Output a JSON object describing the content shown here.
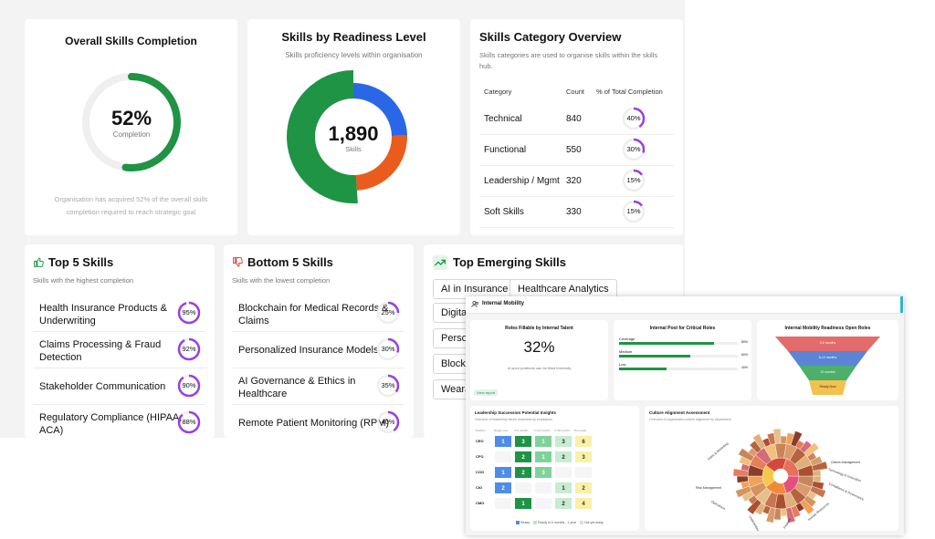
{
  "overall": {
    "title": "Overall Skills Completion",
    "percent": "52%",
    "percent_value": 52,
    "label": "Completion",
    "note_line1": "Organisation has acquired 52% of the overall skills",
    "note_line2": "completion required to reach strategic goal",
    "color": "#1e9444"
  },
  "readiness": {
    "title": "Skills by Readiness Level",
    "subtitle": "Skills proficiency levels within organisation",
    "total": "1,890",
    "total_label": "Skills",
    "colors": [
      "#2a67e7",
      "#ea5c1d",
      "#1e9444"
    ]
  },
  "chart_data": {
    "type": "pie",
    "title": "Skills by Readiness Level",
    "values": [
      465,
      460,
      965
    ]
  },
  "category": {
    "title": "Skills Category Overview",
    "subtitle_line1": "Skills categories are used to organise skills within the skills",
    "subtitle_line2": "hub.",
    "headers": [
      "Category",
      "Count",
      "% of Total Completion"
    ],
    "rows": [
      {
        "name": "Technical",
        "count": "840",
        "pct": "40%",
        "value": 40
      },
      {
        "name": "Functional",
        "count": "550",
        "pct": "30%",
        "value": 30
      },
      {
        "name": "Leadership / Mgmt",
        "count": "320",
        "pct": "15%",
        "value": 15
      },
      {
        "name": "Soft Skills",
        "count": "330",
        "pct": "15%",
        "value": 15
      }
    ]
  },
  "top5": {
    "title": "Top 5 Skills",
    "subtitle": "Skills with the highest completion",
    "icon": "thumbs-up-icon",
    "rows": [
      {
        "l1": "Health Insurance Products &",
        "l2": "Underwriting",
        "pct": "95%",
        "value": 95
      },
      {
        "l1": "Claims Processing & Fraud",
        "l2": "Detection",
        "pct": "92%",
        "value": 92
      },
      {
        "l1": "Stakeholder Communication",
        "l2": "",
        "pct": "90%",
        "value": 90
      },
      {
        "l1": "Regulatory Compliance (HIPAA,",
        "l2": "ACA)",
        "pct": "88%",
        "value": 88
      }
    ]
  },
  "bottom5": {
    "title": "Bottom 5 Skills",
    "subtitle": "Skills with the lowest completion",
    "icon": "thumbs-down-icon",
    "rows": [
      {
        "l1": "Blockchain for Medical Records &",
        "l2": "Claims",
        "pct": "25%",
        "value": 25
      },
      {
        "l1": "Personalized Insurance Models",
        "l2": "",
        "pct": "30%",
        "value": 30
      },
      {
        "l1": "AI Governance & Ethics in",
        "l2": "Healthcare",
        "pct": "35%",
        "value": 35
      },
      {
        "l1": "Remote Patient Monitoring (RPM)",
        "l2": "",
        "pct": "40%",
        "value": 40
      }
    ]
  },
  "emerging": {
    "title": "Top Emerging Skills",
    "icon": "trending-up-icon",
    "chips": [
      "AI in Insurance",
      "Healthcare Analytics",
      "Digital C",
      "Persona",
      "Blockch",
      "Wearab"
    ]
  },
  "mobility": {
    "header": "Internal Mobility",
    "roles_title": "Roles Fillable by Internal Talent",
    "roles_value": "32%",
    "roles_note": "of open positions can be filled internally",
    "roles_badge": "View report",
    "pool_title": "Internal Pool for Critical Roles",
    "pool_rows": [
      {
        "label": "Coverage",
        "pct": "80%",
        "value": 80
      },
      {
        "label": "Medium",
        "pct": "60%",
        "value": 60
      },
      {
        "label": "Low",
        "pct": "40%",
        "value": 40
      }
    ],
    "funnel_title": "Internal Mobility Readiness Open Roles",
    "funnel_labels": [
      "0-6 months",
      "6-12 months",
      "12 months",
      "Ready Now"
    ],
    "succession_title": "Leadership Succession Potential Insights",
    "succession_sub": "Overview of leadership bench readiness by employees",
    "succession_headers": [
      "Position",
      "Ready now",
      "In 6 months",
      "In 12 months",
      "In 18 months",
      "Not ready"
    ],
    "succession_rows": [
      {
        "pos": "CEO",
        "cells": [
          "1",
          "3",
          "1",
          "3",
          "6"
        ]
      },
      {
        "pos": "CFO",
        "cells": [
          "",
          "2",
          "1",
          "2",
          "3"
        ]
      },
      {
        "pos": "COO",
        "cells": [
          "1",
          "2",
          "3",
          "",
          ""
        ]
      },
      {
        "pos": "CIO",
        "cells": [
          "2",
          "",
          "",
          "1",
          "2"
        ]
      },
      {
        "pos": "CMO",
        "cells": [
          "",
          "1",
          "",
          "2",
          "4"
        ]
      }
    ],
    "succession_legend": [
      "Ready",
      "Ready in 6 months - 1 year",
      "Not yet ready"
    ],
    "culture_title": "Culture Alignment Assessment",
    "culture_sub": "Overview of organisation culture alignment by department",
    "culture_labels": [
      "Sales & Marketing",
      "Risk Management",
      "Operations",
      "Underwriting",
      "Finance",
      "Human Resources",
      "Technology & Innovation",
      "Claims Management",
      "Compliance & Governance"
    ]
  }
}
